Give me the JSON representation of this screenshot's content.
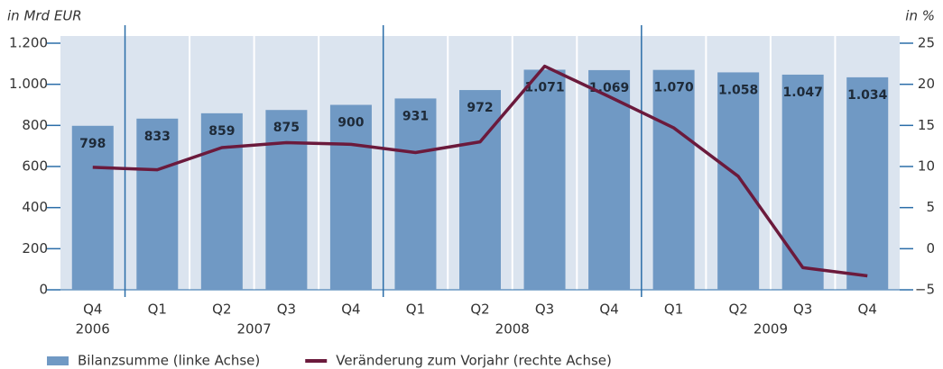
{
  "chart_data": {
    "type": "bar_line",
    "y_unit_label": "in Mrd EUR",
    "y2_unit_label": "in %",
    "categories": [
      "Q4",
      "Q1",
      "Q2",
      "Q3",
      "Q4",
      "Q1",
      "Q2",
      "Q3",
      "Q4",
      "Q1",
      "Q2",
      "Q3",
      "Q4"
    ],
    "x_groups": [
      {
        "label": "2006",
        "span": 1
      },
      {
        "label": "2007",
        "span": 4
      },
      {
        "label": "2008",
        "span": 4
      },
      {
        "label": "2009",
        "span": 4
      }
    ],
    "series": [
      {
        "name": "Bilanzsumme (linke Achse)",
        "type": "bar",
        "color": "#7099c4",
        "values": [
          798,
          833,
          859,
          875,
          900,
          931,
          972,
          1071,
          1069,
          1070,
          1058,
          1047,
          1034
        ],
        "value_labels": [
          "798",
          "833",
          "859",
          "875",
          "900",
          "931",
          "972",
          "1.071",
          "1.069",
          "1.070",
          "1.058",
          "1.047",
          "1.034"
        ]
      },
      {
        "name": "Veränderung zum Vorjahr (rechte Achse)",
        "type": "line",
        "color": "#6b1a3c",
        "axis": "y2",
        "values": [
          9.9,
          9.6,
          12.3,
          12.9,
          12.7,
          11.7,
          13.0,
          22.2,
          18.5,
          14.7,
          8.8,
          -2.3,
          -3.3
        ]
      }
    ],
    "ylim": [
      0,
      1200
    ],
    "yticks": [
      0,
      200,
      400,
      600,
      800,
      {
        "value": 1000,
        "label": "1.000"
      },
      {
        "value": 1200,
        "label": "1.200"
      }
    ],
    "y2lim": [
      -5,
      25
    ],
    "y2ticks": [
      {
        "value": -5,
        "label": "−5"
      },
      0,
      5,
      10,
      15,
      20,
      25
    ],
    "background": "#dbe4ef",
    "tick_color": "#2a6da8"
  }
}
